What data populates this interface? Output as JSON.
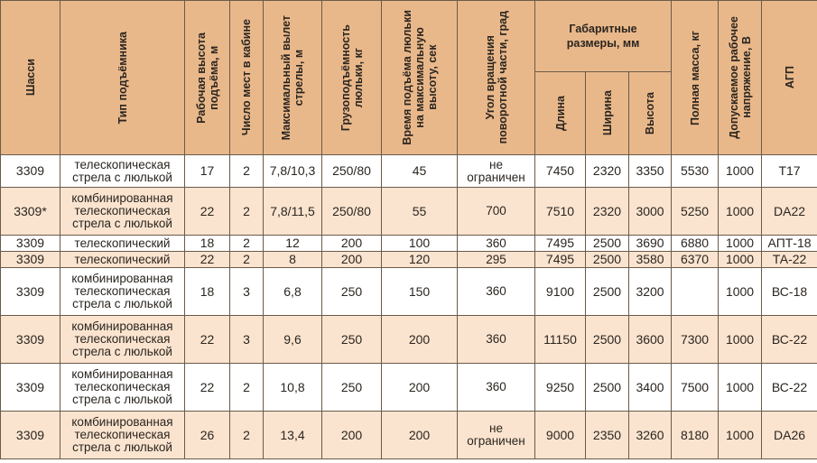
{
  "headers": {
    "chassis": "Шасси",
    "lift_type": "Тип подъёмника",
    "work_height": "Рабочая высота\nподъёма, м",
    "seats": "Число мест в кабине",
    "max_reach": "Максимальный вылет\nстрелы, м",
    "capacity": "Грузоподъёмность\nлюльки, кг",
    "lift_time": "Время подъёма люльки\nна максимальную\nвысоту, сек",
    "rotation": "Угол вращения\nповоротной части, град",
    "dimensions": "Габаритные\nразмеры, мм",
    "length": "Длина",
    "width": "Ширина",
    "height": "Высота",
    "mass": "Полная масса, кг",
    "voltage": "Допускаемое рабочее\nнапряжение, В",
    "agp": "АГП"
  },
  "rows": [
    {
      "chassis": "3309",
      "type": "телескопическая\nстрела с люлькой",
      "h": "17",
      "seats": "2",
      "reach": "7,8/10,3",
      "cap": "250/80",
      "time": "45",
      "rot": "не\nограничен",
      "len": "7450",
      "wid": "2320",
      "hei": "3350",
      "mass": "5530",
      "volt": "1000",
      "agp": "Т17"
    },
    {
      "chassis": "3309*",
      "type": "комбинированная\nтелескопическая\nстрела с люлькой",
      "h": "22",
      "seats": "2",
      "reach": "7,8/11,5",
      "cap": "250/80",
      "time": "55",
      "rot": "700",
      "len": "7510",
      "wid": "2320",
      "hei": "3000",
      "mass": "5250",
      "volt": "1000",
      "agp": "DA22"
    },
    {
      "chassis": "3309",
      "type": "телескопический",
      "h": "18",
      "seats": "2",
      "reach": "12",
      "cap": "200",
      "time": "100",
      "rot": "360",
      "len": "7495",
      "wid": "2500",
      "hei": "3690",
      "mass": "6880",
      "volt": "1000",
      "agp": "АПТ-18"
    },
    {
      "chassis": "3309",
      "type": "телескопический",
      "h": "22",
      "seats": "2",
      "reach": "8",
      "cap": "200",
      "time": "120",
      "rot": "295",
      "len": "7495",
      "wid": "2500",
      "hei": "3580",
      "mass": "6370",
      "volt": "1000",
      "agp": "ТА-22"
    },
    {
      "chassis": "3309",
      "type": "комбинированная\nтелескопическая\nстрела с люлькой",
      "h": "18",
      "seats": "3",
      "reach": "6,8",
      "cap": "250",
      "time": "150",
      "rot": "360",
      "len": "9100",
      "wid": "2500",
      "hei": "3200",
      "mass": "",
      "volt": "1000",
      "agp": "ВС-18"
    },
    {
      "chassis": "3309",
      "type": "комбинированная\nтелескопическая\nстрела с люлькой",
      "h": "22",
      "seats": "3",
      "reach": "9,6",
      "cap": "250",
      "time": "200",
      "rot": "360",
      "len": "11150",
      "wid": "2500",
      "hei": "3600",
      "mass": "7300",
      "volt": "1000",
      "agp": "ВС-22"
    },
    {
      "chassis": "3309",
      "type": "комбинированная\nтелескопическая\nстрела с люлькой",
      "h": "22",
      "seats": "2",
      "reach": "10,8",
      "cap": "250",
      "time": "200",
      "rot": "360",
      "len": "9250",
      "wid": "2500",
      "hei": "3400",
      "mass": "7500",
      "volt": "1000",
      "agp": "ВС-22"
    },
    {
      "chassis": "3309",
      "type": "комбинированная\nтелескопическая\nстрела с люлькой",
      "h": "26",
      "seats": "2",
      "reach": "13,4",
      "cap": "200",
      "time": "200",
      "rot": "не\nограничен",
      "len": "9000",
      "wid": "2350",
      "hei": "3260",
      "mass": "8180",
      "volt": "1000",
      "agp": "DA26"
    }
  ]
}
